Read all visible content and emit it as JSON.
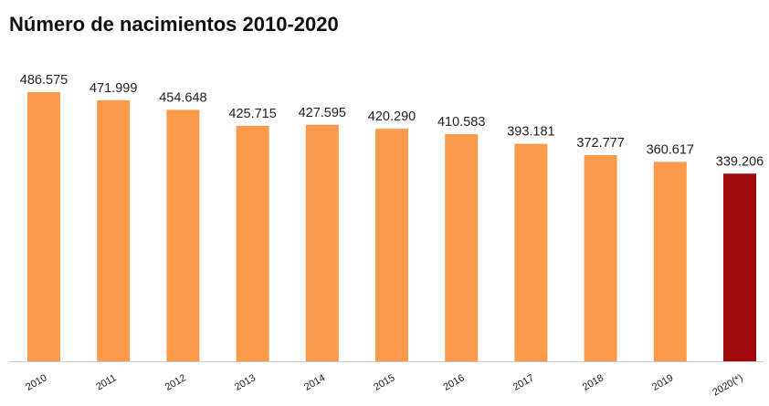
{
  "chart_data": {
    "type": "bar",
    "title": "Número de nacimientos 2010-2020",
    "xlabel": "",
    "ylabel": "",
    "categories": [
      "2010",
      "2011",
      "2012",
      "2013",
      "2014",
      "2015",
      "2016",
      "2017",
      "2018",
      "2019",
      "2020(*)"
    ],
    "values": [
      486575,
      471999,
      454648,
      425715,
      427595,
      420290,
      410583,
      393181,
      372777,
      360617,
      339206
    ],
    "value_labels": [
      "486.575",
      "471.999",
      "454.648",
      "425.715",
      "427.595",
      "420.290",
      "410.583",
      "393.181",
      "372.777",
      "360.617",
      "339.206"
    ],
    "ylim": [
      0,
      486575
    ],
    "grid": false,
    "colors": {
      "default": "#FB9A4B",
      "highlight": "#9E0A0A",
      "axis": "#cccccc"
    },
    "highlight_index": 10
  }
}
